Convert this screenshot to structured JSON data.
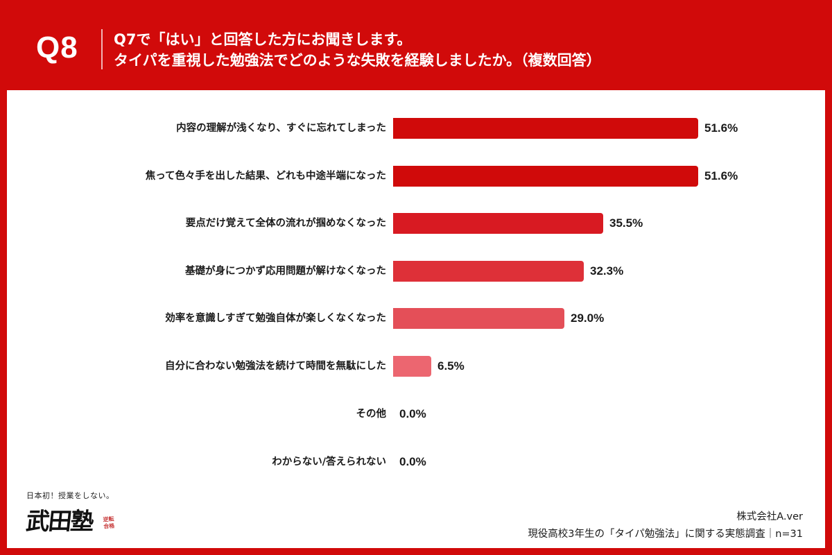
{
  "header": {
    "question_number": "Q8",
    "question_line1": "Q7で「はい」と回答した方にお聞きします。",
    "question_line2": "タイパを重視した勉強法でどのような失敗を経験しましたか。（複数回答）"
  },
  "colors": {
    "frame": "#d10a0a",
    "panel": "#ffffff",
    "text": "#1a1a1a"
  },
  "chart_data": {
    "type": "bar",
    "orientation": "horizontal",
    "title": "タイパを重視した勉強法でどのような失敗を経験しましたか。（複数回答）",
    "xlabel": "",
    "ylabel": "",
    "grid": false,
    "legend": null,
    "unit": "%",
    "categories": [
      "内容の理解が浅くなり、すぐに忘れてしまった",
      "焦って色々手を出した結果、どれも中途半端になった",
      "要点だけ覚えて全体の流れが掴めなくなった",
      "基礎が身につかず応用問題が解けなくなった",
      "効率を意識しすぎて勉強自体が楽しくなくなった",
      "自分に合わない勉強法を続けて時間を無駄にした",
      "その他",
      "わからない/答えられない"
    ],
    "values": [
      51.6,
      51.6,
      35.5,
      32.3,
      29.0,
      6.5,
      0.0,
      0.0
    ],
    "value_labels": [
      "51.6%",
      "51.6%",
      "35.5%",
      "32.3%",
      "29.0%",
      "6.5%",
      "0.0%",
      "0.0%"
    ],
    "bar_colors": [
      "#d00a0a",
      "#d00a0a",
      "#d81a22",
      "#de3038",
      "#e44f58",
      "#ec6670",
      "#ec6670",
      "#ec6670"
    ],
    "xlim": [
      0,
      51.6
    ]
  },
  "logo": {
    "tagline": "日本初！授業をしない。",
    "name": "武田塾",
    "stamp": "逆転合格"
  },
  "footer": {
    "company": "株式会社A.ver",
    "survey": "現役高校3年生の「タイパ勉強法」に関する実態調査｜n=31"
  }
}
